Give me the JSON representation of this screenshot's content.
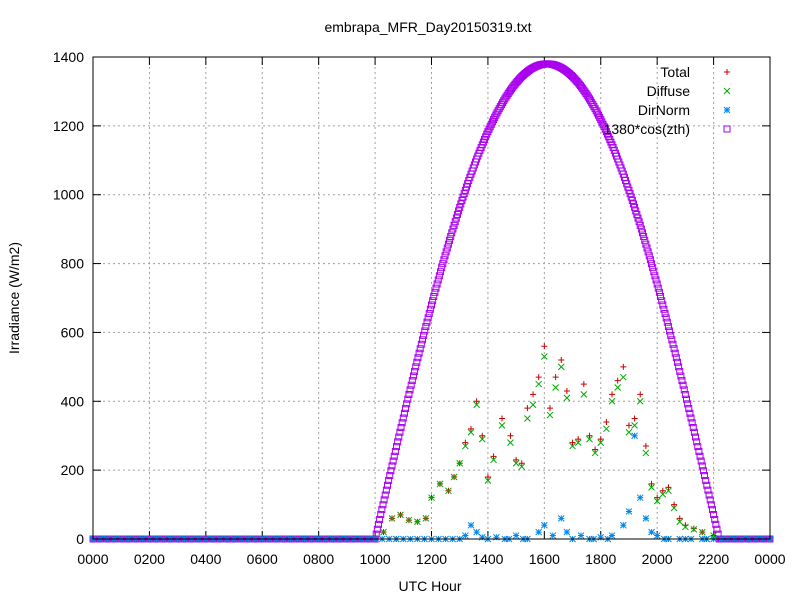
{
  "chart_data": {
    "type": "scatter",
    "title": "embrapa_MFR_Day20150319.txt",
    "xlabel": "UTC Hour",
    "ylabel": "Irradiance (W/m2)",
    "xlim": [
      0,
      24
    ],
    "ylim": [
      0,
      1400
    ],
    "xticks": [
      0,
      2,
      4,
      6,
      8,
      10,
      12,
      14,
      16,
      18,
      20,
      22,
      24
    ],
    "xtick_labels": [
      "0000",
      "0200",
      "0400",
      "0600",
      "0800",
      "1000",
      "1200",
      "1400",
      "1600",
      "1800",
      "2000",
      "2200",
      "0000"
    ],
    "yticks": [
      0,
      200,
      400,
      600,
      800,
      1000,
      1200,
      1400
    ],
    "ytick_labels": [
      "0",
      "200",
      "400",
      "600",
      "800",
      "1000",
      "1200",
      "1400"
    ],
    "grid": true,
    "legend_position": "top-right",
    "series": [
      {
        "name": "Total",
        "marker": "plus",
        "color": "#cc0000",
        "x": [
          10.0,
          10.3,
          10.6,
          10.9,
          11.2,
          11.5,
          11.8,
          12.0,
          12.3,
          12.6,
          12.8,
          13.0,
          13.2,
          13.4,
          13.6,
          13.8,
          14.0,
          14.2,
          14.5,
          14.8,
          15.0,
          15.2,
          15.4,
          15.6,
          15.8,
          16.0,
          16.2,
          16.4,
          16.6,
          16.8,
          17.0,
          17.2,
          17.4,
          17.6,
          17.8,
          18.0,
          18.2,
          18.4,
          18.6,
          18.8,
          19.0,
          19.2,
          19.4,
          19.6,
          19.8,
          20.0,
          20.2,
          20.4,
          20.6,
          20.8,
          21.0,
          21.3,
          21.6,
          22.0,
          22.3
        ],
        "y": [
          0,
          20,
          60,
          70,
          55,
          50,
          60,
          120,
          160,
          140,
          180,
          220,
          280,
          320,
          400,
          300,
          180,
          240,
          350,
          300,
          230,
          220,
          380,
          420,
          470,
          560,
          380,
          470,
          520,
          430,
          280,
          290,
          450,
          300,
          260,
          290,
          340,
          420,
          460,
          500,
          330,
          350,
          420,
          270,
          160,
          120,
          140,
          150,
          100,
          60,
          40,
          30,
          20,
          10,
          0
        ]
      },
      {
        "name": "Diffuse",
        "marker": "cross",
        "color": "#00aa00",
        "x": [
          10.0,
          10.3,
          10.6,
          10.9,
          11.2,
          11.5,
          11.8,
          12.0,
          12.3,
          12.6,
          12.8,
          13.0,
          13.2,
          13.4,
          13.6,
          13.8,
          14.0,
          14.2,
          14.5,
          14.8,
          15.0,
          15.2,
          15.4,
          15.6,
          15.8,
          16.0,
          16.2,
          16.4,
          16.6,
          16.8,
          17.0,
          17.2,
          17.4,
          17.6,
          17.8,
          18.0,
          18.2,
          18.4,
          18.6,
          18.8,
          19.0,
          19.2,
          19.4,
          19.6,
          19.8,
          20.0,
          20.2,
          20.4,
          20.6,
          20.8,
          21.0,
          21.3,
          21.6,
          22.0,
          22.3
        ],
        "y": [
          0,
          20,
          60,
          70,
          55,
          50,
          60,
          120,
          160,
          140,
          180,
          220,
          270,
          310,
          390,
          290,
          170,
          230,
          330,
          280,
          220,
          210,
          350,
          390,
          450,
          530,
          360,
          440,
          500,
          410,
          270,
          280,
          420,
          290,
          250,
          280,
          320,
          400,
          440,
          470,
          310,
          330,
          400,
          250,
          150,
          110,
          130,
          140,
          90,
          50,
          35,
          28,
          20,
          10,
          0
        ]
      },
      {
        "name": "DirNorm",
        "marker": "star",
        "color": "#0088ee",
        "x": [
          10.0,
          10.5,
          11.0,
          11.5,
          12.0,
          12.5,
          13.0,
          13.2,
          13.4,
          13.6,
          13.8,
          14.0,
          14.3,
          14.6,
          15.0,
          15.4,
          15.8,
          16.0,
          16.3,
          16.6,
          16.8,
          17.0,
          17.3,
          17.6,
          18.0,
          18.4,
          18.8,
          19.0,
          19.2,
          19.4,
          19.6,
          19.8,
          20.0,
          20.4,
          20.8,
          21.2,
          21.6,
          22.0,
          22.3
        ],
        "y": [
          0,
          0,
          0,
          0,
          0,
          0,
          0,
          10,
          40,
          20,
          5,
          0,
          5,
          0,
          10,
          0,
          20,
          40,
          10,
          60,
          20,
          0,
          10,
          0,
          5,
          10,
          40,
          80,
          300,
          120,
          60,
          20,
          10,
          0,
          0,
          0,
          0,
          0,
          0
        ]
      },
      {
        "name": "1380*cos(zth)",
        "marker": "square",
        "color": "#aa00ee",
        "sunrise": 10.0,
        "sunset": 22.2,
        "peak_x": 16.1,
        "peak_y": 1380
      }
    ]
  }
}
